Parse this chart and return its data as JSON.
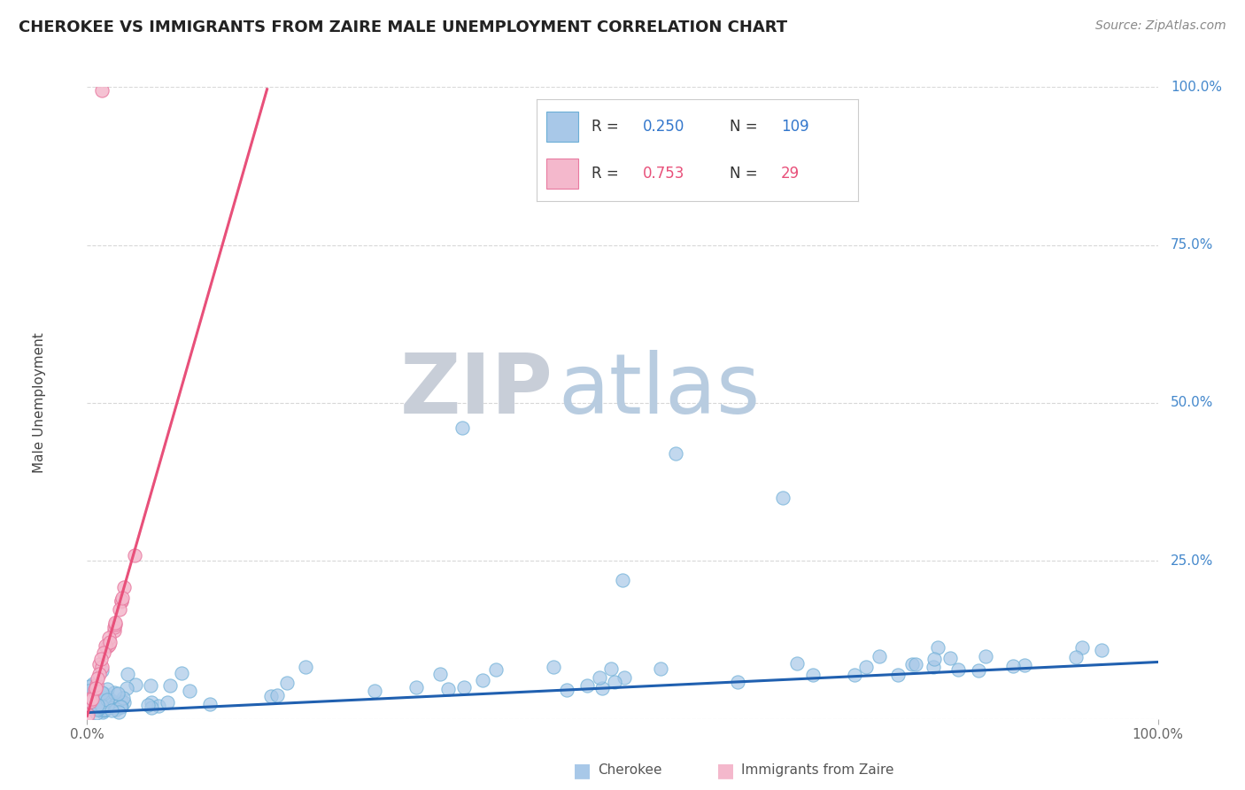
{
  "title": "CHEROKEE VS IMMIGRANTS FROM ZAIRE MALE UNEMPLOYMENT CORRELATION CHART",
  "source": "Source: ZipAtlas.com",
  "ylabel": "Male Unemployment",
  "cherokee_color": "#a8c8e8",
  "cherokee_edge_color": "#6baed6",
  "zaire_color": "#f4b8cc",
  "zaire_edge_color": "#e87aa0",
  "cherokee_line_color": "#2060b0",
  "zaire_line_color": "#e8507a",
  "watermark_zip_color": "#c8d0dc",
  "watermark_atlas_color": "#b8c8dc",
  "background_color": "#ffffff",
  "grid_color": "#d8d8d8",
  "cherokee_R": 0.25,
  "cherokee_N": 109,
  "zaire_R": 0.753,
  "zaire_N": 29,
  "right_tick_color": "#4488cc",
  "title_color": "#222222",
  "source_color": "#888888",
  "axis_label_color": "#444444",
  "xtick_color": "#666666",
  "legend_R_color_cherokee": "#3377cc",
  "legend_N_color_cherokee": "#3377cc",
  "legend_R_color_zaire": "#e8507a",
  "legend_N_color_zaire": "#e8507a",
  "legend_text_color": "#333333"
}
